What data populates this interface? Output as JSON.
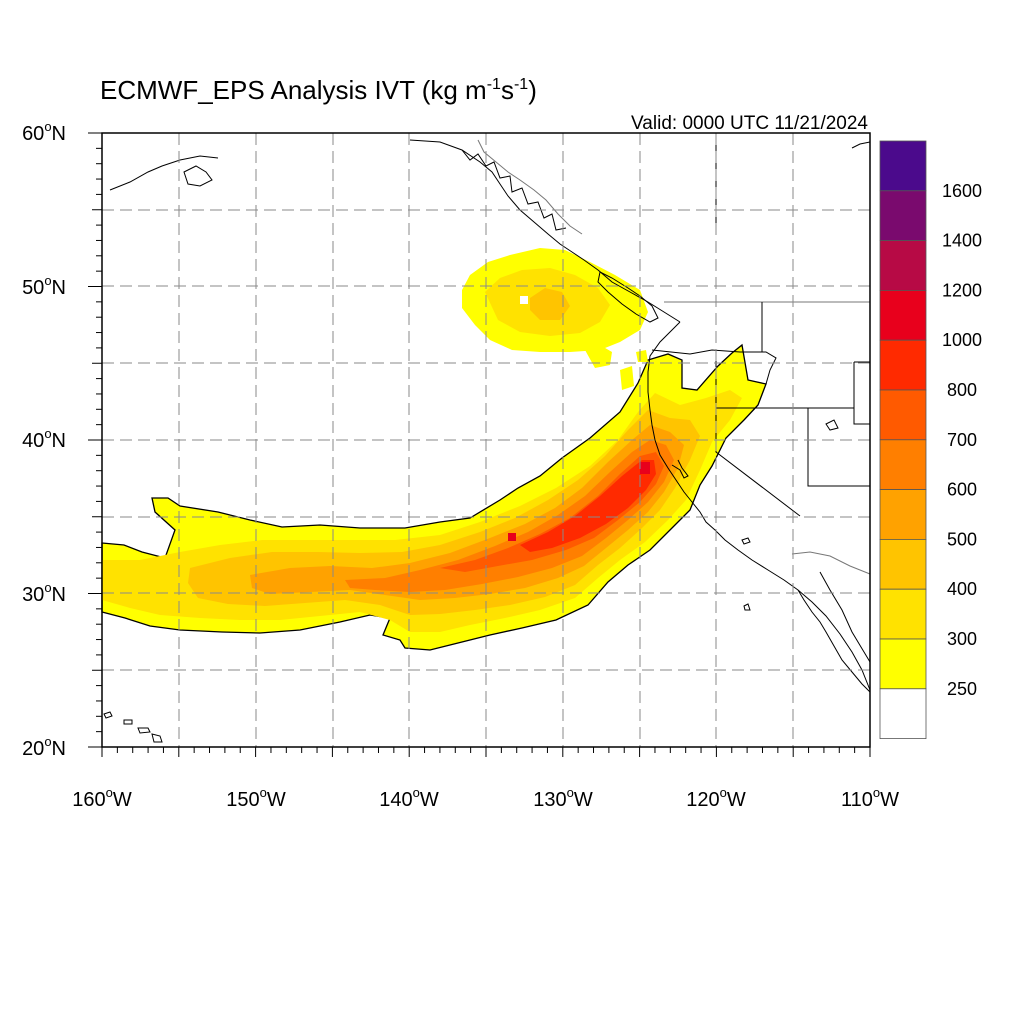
{
  "map": {
    "title_main": "ECMWF_EPS Analysis IVT (kg m",
    "title_sup1": "-1",
    "title_mid": "s",
    "title_sup2": "-1",
    "title_end": ")",
    "valid": "Valid: 0000 UTC 11/21/2024",
    "degree_symbol": "o",
    "lat_ticks": [
      {
        "deg": "60",
        "hemi": "N"
      },
      {
        "deg": "50",
        "hemi": "N"
      },
      {
        "deg": "40",
        "hemi": "N"
      },
      {
        "deg": "30",
        "hemi": "N"
      },
      {
        "deg": "20",
        "hemi": "N"
      }
    ],
    "lon_ticks": [
      {
        "deg": "160",
        "hemi": "W"
      },
      {
        "deg": "150",
        "hemi": "W"
      },
      {
        "deg": "140",
        "hemi": "W"
      },
      {
        "deg": "130",
        "hemi": "W"
      },
      {
        "deg": "120",
        "hemi": "W"
      },
      {
        "deg": "110",
        "hemi": "W"
      }
    ],
    "lat_range": [
      20,
      60
    ],
    "lon_range": [
      -160,
      -110
    ],
    "grid": "dashed every 5 degrees",
    "colorbar": {
      "placement": "right",
      "labels": [
        "1600",
        "1400",
        "1200",
        "1000",
        "800",
        "700",
        "600",
        "500",
        "400",
        "300",
        "250"
      ],
      "colors": [
        "#4b0a8c",
        "#7a0a6e",
        "#b70a45",
        "#e8001c",
        "#ff2a00",
        "#ff5a00",
        "#ff7f00",
        "#ffa200",
        "#ffc400",
        "#ffe200",
        "#ffff00",
        "#ffffff"
      ]
    }
  }
}
